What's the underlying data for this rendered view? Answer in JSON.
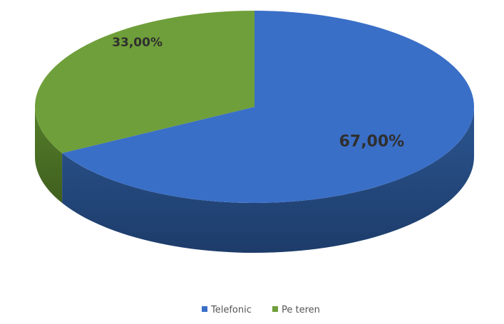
{
  "chart_data": {
    "type": "pie",
    "variant": "3d",
    "series": [
      {
        "name": "Telefonic",
        "value": 67.0,
        "label": "67,00%",
        "color": "#3a6fc7"
      },
      {
        "name": "Pe teren",
        "value": 33.0,
        "label": "33,00%",
        "color": "#6f9f3a"
      }
    ],
    "legend_position": "bottom"
  }
}
